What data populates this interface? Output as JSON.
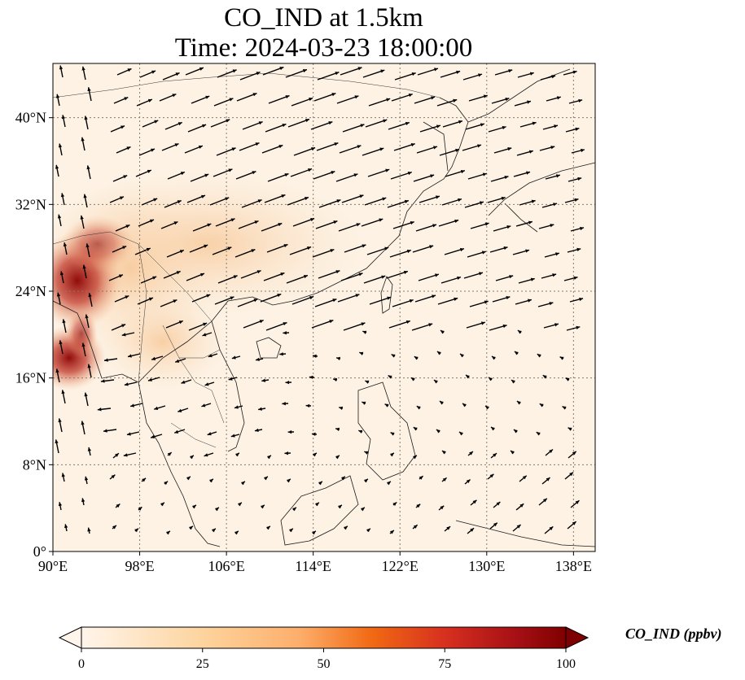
{
  "title": {
    "line1": "CO_IND at 1.5km",
    "line2": "Time: 2024-03-23 18:00:00"
  },
  "map": {
    "extent": {
      "lon": [
        90,
        140
      ],
      "lat": [
        0,
        45
      ]
    },
    "lat_ticks": [
      {
        "value": 0,
        "label": "0°"
      },
      {
        "value": 8,
        "label": "8°N"
      },
      {
        "value": 16,
        "label": "16°N"
      },
      {
        "value": 24,
        "label": "24°N"
      },
      {
        "value": 32,
        "label": "32°N"
      },
      {
        "value": 40,
        "label": "40°N"
      }
    ],
    "lon_ticks": [
      {
        "value": 90,
        "label": "90°E"
      },
      {
        "value": 98,
        "label": "98°E"
      },
      {
        "value": 106,
        "label": "106°E"
      },
      {
        "value": 114,
        "label": "114°E"
      },
      {
        "value": 122,
        "label": "122°E"
      },
      {
        "value": 130,
        "label": "130°E"
      },
      {
        "value": 138,
        "label": "138°E"
      }
    ],
    "gridlines": true
  },
  "colorbar": {
    "label": "CO_IND (ppbv)",
    "ticks": [
      "0",
      "25",
      "50",
      "75",
      "100"
    ],
    "range": [
      0,
      100
    ],
    "colormap": [
      "#fff5eb",
      "#fdd49e",
      "#fdae6b",
      "#f16913",
      "#d7301f",
      "#990000",
      "#7f0000"
    ]
  },
  "colors": {
    "background_field": "#fdf2e4",
    "coast": "#1a1a1a",
    "wind_arrow": "#000000",
    "grid": "#8a7a6a"
  }
}
